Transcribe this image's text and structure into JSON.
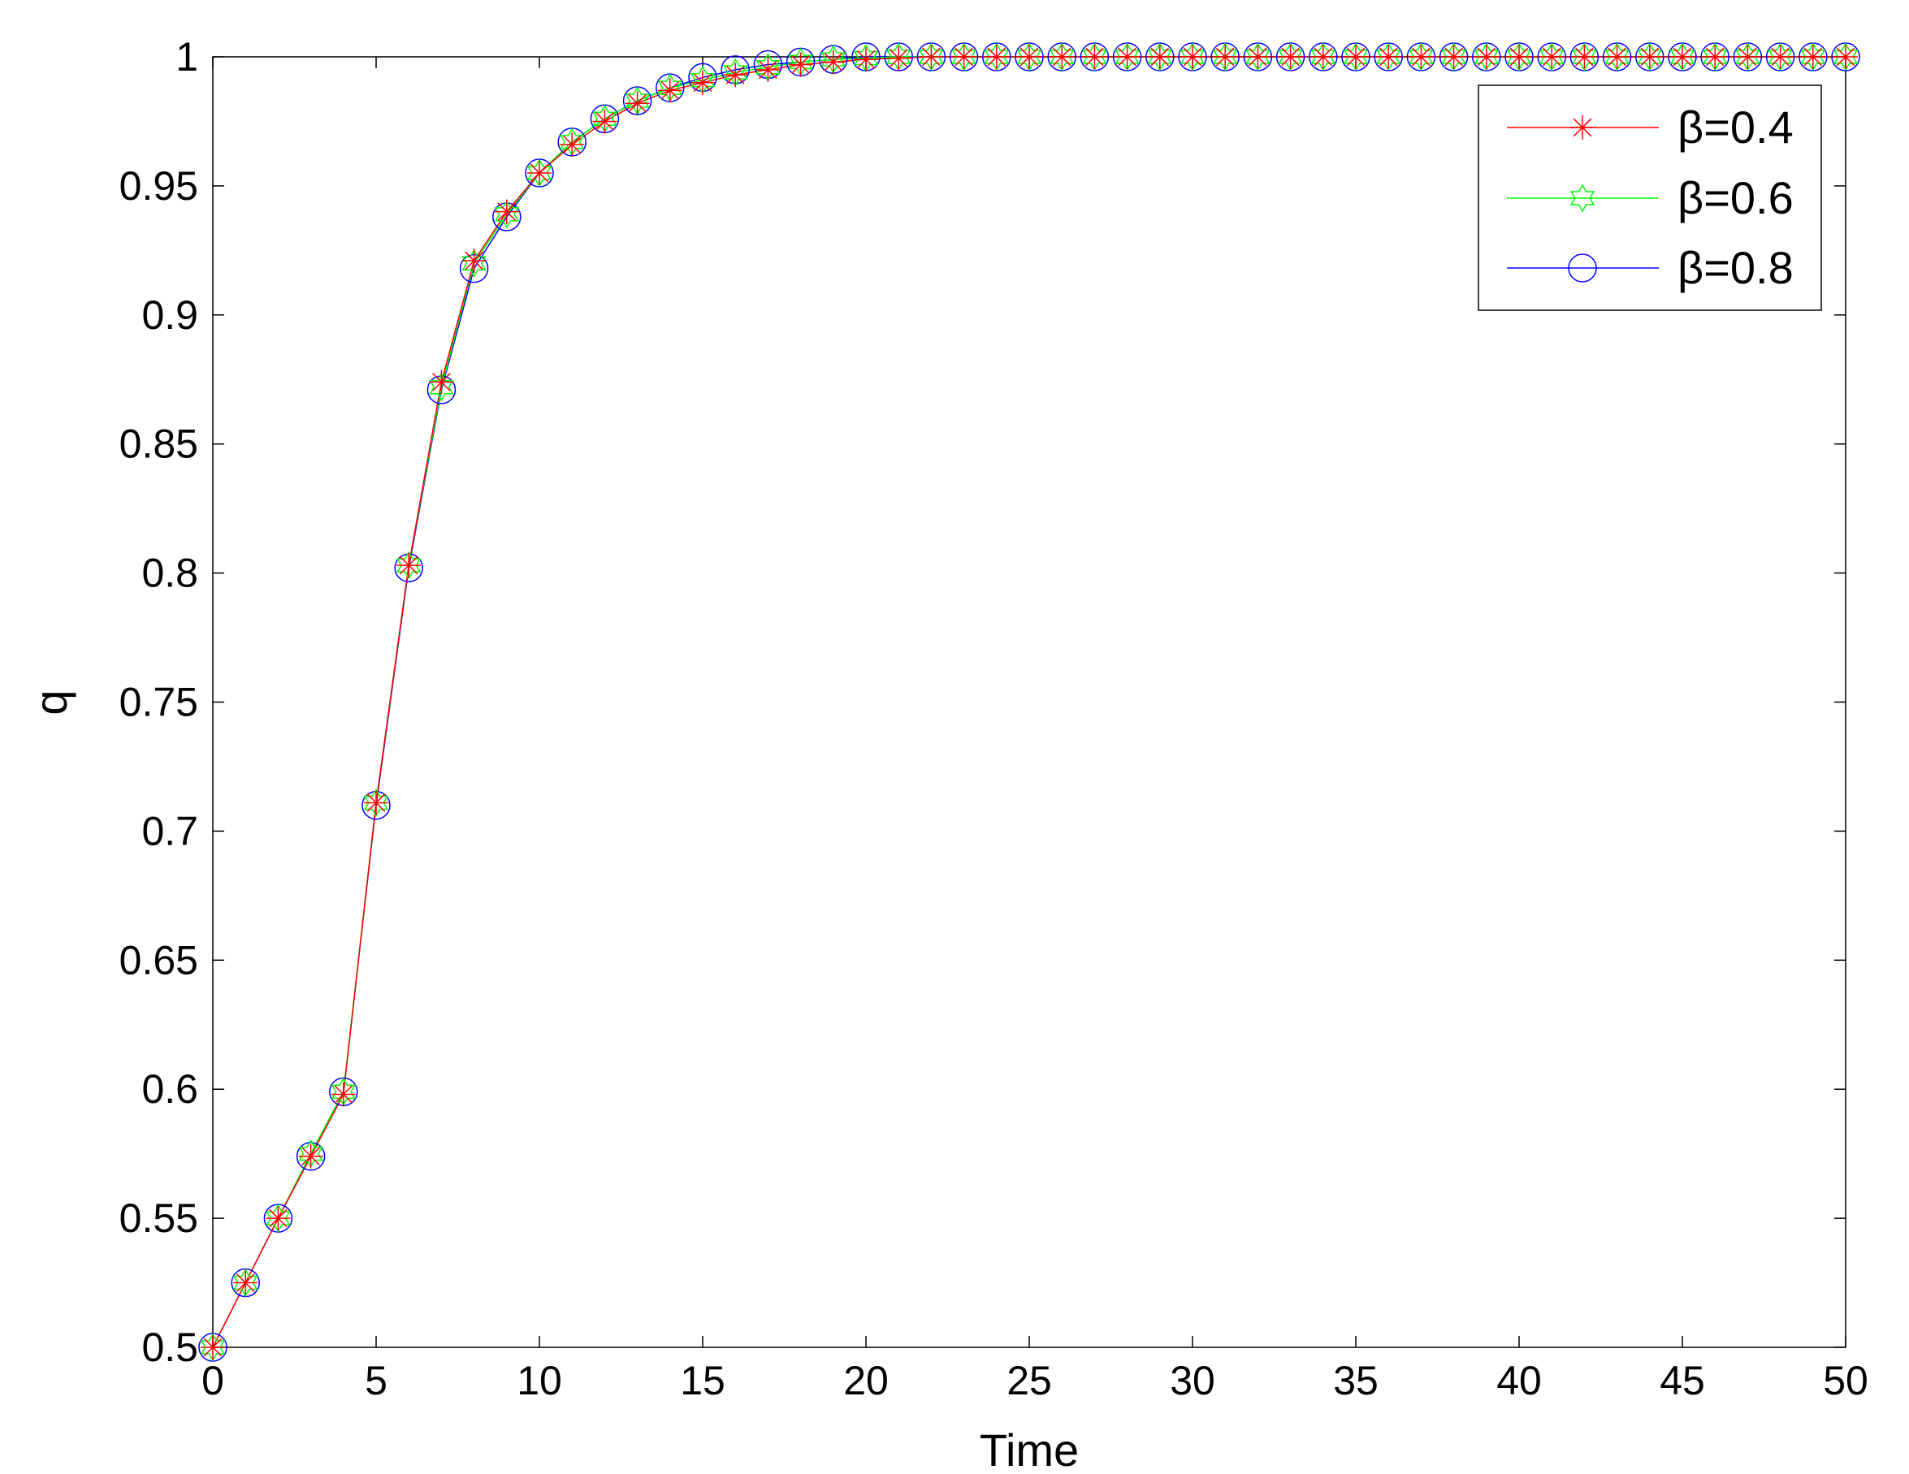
{
  "chart_data": {
    "type": "line",
    "title": "",
    "xlabel": "Time",
    "ylabel": "q",
    "xlim": [
      0,
      50
    ],
    "ylim": [
      0.5,
      1
    ],
    "xticks": [
      "0",
      "5",
      "10",
      "15",
      "20",
      "25",
      "30",
      "35",
      "40",
      "45",
      "50"
    ],
    "yticks": [
      "0.5",
      "0.55",
      "0.6",
      "0.65",
      "0.7",
      "0.75",
      "0.8",
      "0.85",
      "0.9",
      "0.95",
      "1"
    ],
    "grid": false,
    "legend_position": "top-right",
    "x": [
      0,
      1,
      2,
      3,
      4,
      5,
      6,
      7,
      8,
      9,
      10,
      11,
      12,
      13,
      14,
      15,
      16,
      17,
      18,
      19,
      20,
      21,
      22,
      23,
      24,
      25,
      26,
      27,
      28,
      29,
      30,
      31,
      32,
      33,
      34,
      35,
      36,
      37,
      38,
      39,
      40,
      41,
      42,
      43,
      44,
      45,
      46,
      47,
      48,
      49,
      50
    ],
    "series": [
      {
        "name": "β=0.4",
        "color": "#ff0000",
        "marker": "asterisk",
        "values": [
          0.5,
          0.525,
          0.55,
          0.574,
          0.598,
          0.711,
          0.803,
          0.874,
          0.921,
          0.94,
          0.955,
          0.966,
          0.975,
          0.982,
          0.987,
          0.99,
          0.993,
          0.995,
          0.997,
          0.998,
          0.999,
          0.9995,
          1,
          1,
          1,
          1,
          1,
          1,
          1,
          1,
          1,
          1,
          1,
          1,
          1,
          1,
          1,
          1,
          1,
          1,
          1,
          1,
          1,
          1,
          1,
          1,
          1,
          1,
          1,
          1,
          1
        ]
      },
      {
        "name": "β=0.6",
        "color": "#00ff00",
        "marker": "hexagram",
        "values": [
          0.5,
          0.525,
          0.55,
          0.575,
          0.599,
          0.711,
          0.803,
          0.872,
          0.92,
          0.939,
          0.955,
          0.967,
          0.976,
          0.983,
          0.988,
          0.991,
          0.994,
          0.996,
          0.998,
          0.999,
          0.9995,
          1,
          1,
          1,
          1,
          1,
          1,
          1,
          1,
          1,
          1,
          1,
          1,
          1,
          1,
          1,
          1,
          1,
          1,
          1,
          1,
          1,
          1,
          1,
          1,
          1,
          1,
          1,
          1,
          1,
          1
        ]
      },
      {
        "name": "β=0.8",
        "color": "#0000ff",
        "marker": "circle",
        "values": [
          0.5,
          0.525,
          0.55,
          0.574,
          0.599,
          0.71,
          0.802,
          0.871,
          0.918,
          0.938,
          0.955,
          0.967,
          0.976,
          0.983,
          0.988,
          0.992,
          0.995,
          0.997,
          0.998,
          0.999,
          1,
          1,
          1,
          1,
          1,
          1,
          1,
          1,
          1,
          1,
          1,
          1,
          1,
          1,
          1,
          1,
          1,
          1,
          1,
          1,
          1,
          1,
          1,
          1,
          1,
          1,
          1,
          1,
          1,
          1,
          1
        ]
      }
    ]
  }
}
